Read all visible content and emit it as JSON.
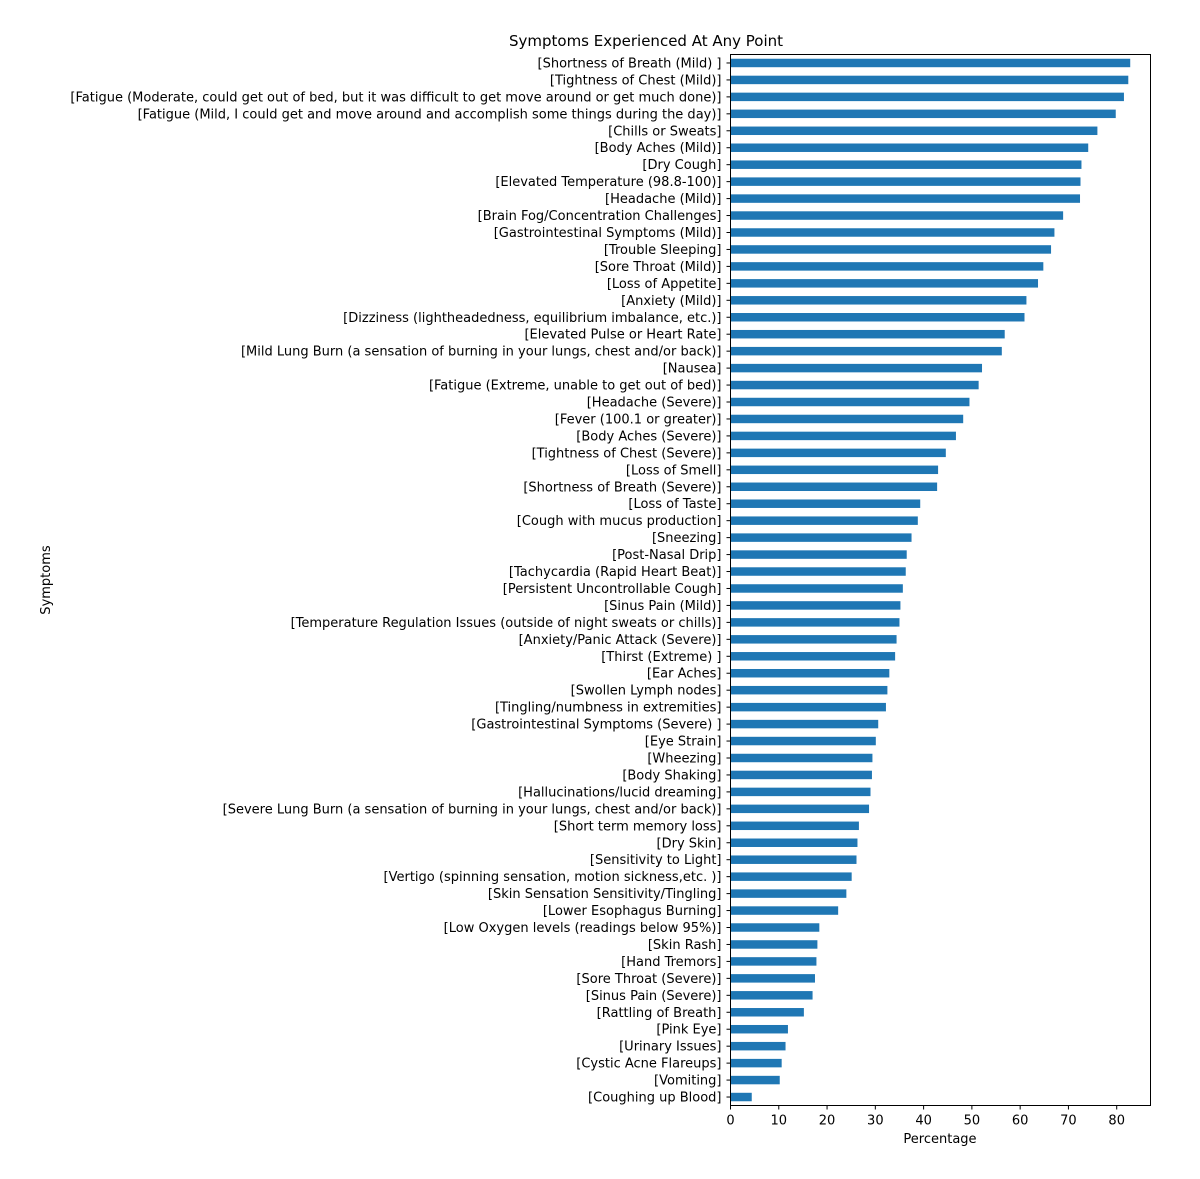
{
  "chart_data": {
    "type": "bar",
    "orientation": "horizontal",
    "title": "Symptoms Experienced At Any Point",
    "xlabel": "Percentage",
    "ylabel": "Symptoms",
    "xlim": [
      0,
      87
    ],
    "xticks": [
      0,
      10,
      20,
      30,
      40,
      50,
      60,
      70,
      80
    ],
    "grid": false,
    "bar_color": "#1f77b4",
    "categories": [
      "[Shortness of Breath (Mild) ]",
      "[Tightness of Chest (Mild)]",
      "[Fatigue (Moderate, could get out of bed, but it was difficult to get move around or get much done)]",
      "[Fatigue (Mild, I could get and move around and accomplish some things during the day)]",
      "[Chills or Sweats]",
      "[Body Aches (Mild)]",
      "[Dry Cough]",
      "[Elevated Temperature (98.8-100)]",
      "[Headache (Mild)]",
      "[Brain Fog/Concentration Challenges]",
      "[Gastrointestinal Symptoms (Mild)]",
      "[Trouble Sleeping]",
      "[Sore Throat (Mild)]",
      "[Loss of Appetite]",
      "[Anxiety (Mild)]",
      "[Dizziness (lightheadedness, equilibrium imbalance, etc.)]",
      "[Elevated Pulse or Heart Rate]",
      "[Mild Lung Burn (a sensation of burning in your lungs, chest and/or back)]",
      "[Nausea]",
      "[Fatigue (Extreme, unable to get out of bed)]",
      "[Headache (Severe)]",
      "[Fever (100.1 or greater)]",
      "[Body Aches (Severe)]",
      "[Tightness of Chest (Severe)]",
      "[Loss of Smell]",
      "[Shortness of Breath (Severe)]",
      "[Loss of Taste]",
      "[Cough with mucus production]",
      "[Sneezing]",
      "[Post-Nasal Drip]",
      "[Tachycardia (Rapid Heart Beat)]",
      "[Persistent Uncontrollable Cough]",
      "[Sinus Pain (Mild)]",
      "[Temperature Regulation Issues (outside of night sweats or chills)]",
      "[Anxiety/Panic Attack (Severe)]",
      "[Thirst (Extreme) ]",
      "[Ear Aches]",
      "[Swollen Lymph nodes]",
      "[Tingling/numbness in extremities]",
      "[Gastrointestinal Symptoms (Severe) ]",
      "[Eye Strain]",
      "[Wheezing]",
      "[Body Shaking]",
      "[Hallucinations/lucid dreaming]",
      "[Severe Lung Burn (a sensation of burning in your lungs, chest and/or back)]",
      "[Short term memory loss]",
      "[Dry Skin]",
      "[Sensitivity to Light]",
      "[Vertigo (spinning sensation, motion sickness,etc. )]",
      "[Skin Sensation Sensitivity/Tingling]",
      "[Lower Esophagus Burning]",
      "[Low Oxygen levels (readings below 95%)]",
      "[Skin Rash]",
      "[Hand Tremors]",
      "[Sore Throat (Severe)]",
      "[Sinus Pain (Severe)]",
      "[Rattling of Breath]",
      "[Pink Eye]",
      "[Urinary Issues]",
      "[Cystic Acne Flareups]",
      "[Vomiting]",
      "[Coughing up Blood]"
    ],
    "values": [
      82.8,
      82.4,
      81.5,
      79.8,
      76.0,
      74.1,
      72.7,
      72.5,
      72.4,
      68.9,
      67.1,
      66.4,
      64.8,
      63.7,
      61.3,
      60.9,
      56.8,
      56.2,
      52.1,
      51.4,
      49.5,
      48.2,
      46.7,
      44.6,
      43.0,
      42.8,
      39.3,
      38.8,
      37.5,
      36.5,
      36.3,
      35.7,
      35.2,
      35.0,
      34.4,
      34.1,
      32.9,
      32.5,
      32.2,
      30.6,
      30.1,
      29.4,
      29.3,
      29.0,
      28.7,
      26.6,
      26.3,
      26.1,
      25.1,
      24.0,
      22.3,
      18.4,
      18.0,
      17.8,
      17.5,
      17.0,
      15.2,
      11.9,
      11.4,
      10.6,
      10.2,
      4.4
    ]
  }
}
